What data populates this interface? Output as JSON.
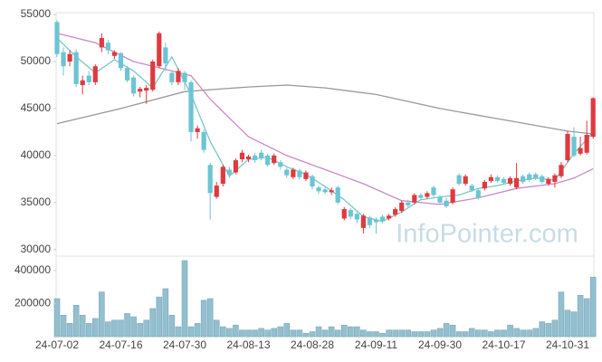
{
  "chart_data": [
    {
      "type": "candlestick",
      "watermark": "InfoPointer.com",
      "categories": [
        "24-07-02",
        null,
        null,
        null,
        null,
        null,
        null,
        null,
        null,
        null,
        "24-07-16",
        null,
        null,
        null,
        null,
        null,
        null,
        null,
        null,
        null,
        "24-07-30",
        null,
        null,
        null,
        null,
        null,
        null,
        null,
        null,
        null,
        "24-08-13",
        null,
        null,
        null,
        null,
        null,
        null,
        null,
        null,
        null,
        "24-08-28",
        null,
        null,
        null,
        null,
        null,
        null,
        null,
        null,
        null,
        "24-09-11",
        null,
        null,
        null,
        null,
        null,
        null,
        null,
        null,
        null,
        "24-09-30",
        null,
        null,
        null,
        null,
        null,
        null,
        null,
        null,
        null,
        "24-10-17",
        null,
        null,
        null,
        null,
        null,
        null,
        null,
        null,
        null,
        "24-10-31",
        null,
        null,
        null,
        null
      ],
      "open": [
        54200,
        51000,
        50000,
        51000,
        47500,
        48500,
        47800,
        51500,
        52000,
        50600,
        50900,
        49300,
        48300,
        46800,
        46900,
        47000,
        49500,
        51500,
        48800,
        47800,
        48800,
        47800,
        42500,
        42500,
        39000,
        35600,
        37000,
        38500,
        38200,
        39600,
        39600,
        40000,
        40300,
        40000,
        39200,
        39300,
        38500,
        37700,
        38400,
        37500,
        37800,
        36600,
        36400,
        36100,
        36600,
        33300,
        34200,
        33800,
        32300,
        33400,
        33200,
        33500,
        33300,
        33700,
        34100,
        35000,
        35000,
        35800,
        35600,
        36600,
        35600,
        35200,
        35000,
        37900,
        37000,
        36800,
        36300,
        36500,
        37300,
        37700,
        37500,
        37000,
        36600,
        37800,
        38000,
        38000,
        37800,
        37000,
        37200,
        37800,
        39500,
        42000,
        40200,
        40300,
        42000
      ],
      "high": [
        54400,
        51500,
        51200,
        51300,
        48500,
        49000,
        49700,
        53000,
        52300,
        51200,
        51000,
        49500,
        48500,
        47300,
        47500,
        50200,
        53200,
        52000,
        49000,
        49300,
        49000,
        48000,
        43200,
        42800,
        39200,
        37200,
        39000,
        38800,
        39700,
        40600,
        40100,
        40300,
        40600,
        40200,
        40200,
        39500,
        38700,
        38700,
        38600,
        38400,
        38000,
        36800,
        36600,
        36600,
        36800,
        34500,
        34400,
        34000,
        33800,
        33600,
        33400,
        33700,
        33800,
        34500,
        35200,
        35300,
        36000,
        36000,
        36200,
        36800,
        35800,
        35500,
        36600,
        38100,
        38000,
        37000,
        36500,
        37400,
        38000,
        37900,
        37700,
        37800,
        39200,
        38000,
        38200,
        38200,
        38000,
        37700,
        38100,
        39300,
        42600,
        43000,
        42000,
        43700,
        46200
      ],
      "low": [
        50500,
        48500,
        49500,
        47300,
        46500,
        47500,
        47500,
        51000,
        50800,
        50300,
        49000,
        47800,
        46300,
        46200,
        45500,
        46800,
        49300,
        49000,
        47500,
        47500,
        47000,
        41500,
        41800,
        40300,
        33200,
        35400,
        36700,
        37600,
        38000,
        39300,
        39300,
        39200,
        39500,
        38800,
        39000,
        38500,
        37600,
        37500,
        37400,
        37300,
        36400,
        35900,
        35900,
        35800,
        34800,
        33100,
        33200,
        32800,
        31700,
        32300,
        31700,
        32800,
        33100,
        33500,
        33900,
        34500,
        34800,
        35300,
        35400,
        35600,
        34800,
        34400,
        34800,
        36800,
        36800,
        36100,
        35300,
        36300,
        37100,
        37100,
        36900,
        36800,
        36400,
        37000,
        37200,
        37400,
        37000,
        36800,
        36600,
        37600,
        39300,
        39800,
        40000,
        40100,
        41800
      ],
      "close": [
        50800,
        49500,
        50800,
        47600,
        48000,
        47800,
        49500,
        52500,
        51200,
        51000,
        49300,
        48000,
        46600,
        47100,
        47200,
        50000,
        53000,
        49800,
        47800,
        49000,
        47800,
        42500,
        42900,
        40600,
        36000,
        36800,
        38800,
        38000,
        39500,
        40300,
        39900,
        39500,
        39700,
        39000,
        40000,
        38800,
        37900,
        38500,
        37700,
        38200,
        36700,
        36200,
        36100,
        36300,
        35000,
        34300,
        33500,
        33200,
        33600,
        32600,
        32900,
        33000,
        33600,
        34300,
        35000,
        34700,
        35800,
        35500,
        36000,
        35800,
        35000,
        34600,
        36400,
        37000,
        37800,
        36300,
        35500,
        37200,
        37700,
        37300,
        37100,
        37600,
        37600,
        37200,
        37400,
        37600,
        37200,
        37500,
        37900,
        39000,
        42300,
        40000,
        40800,
        42200,
        46100
      ],
      "up_color": "#e0393e",
      "down_color": "#6cc4d4",
      "lines": [
        {
          "color": "#999999",
          "x": [
            0,
            10,
            20,
            30,
            36,
            42,
            50,
            60,
            70,
            80,
            84
          ],
          "values": [
            43400,
            45000,
            46800,
            47300,
            47500,
            47200,
            46500,
            45000,
            43800,
            42600,
            42300
          ]
        },
        {
          "color": "#c98ac7",
          "x": [
            0,
            6,
            12,
            18,
            21,
            24,
            30,
            36,
            42,
            48,
            54,
            60,
            66,
            72,
            78,
            81,
            84
          ],
          "values": [
            53000,
            52000,
            50000,
            49000,
            48500,
            46000,
            42000,
            40000,
            38500,
            37000,
            35200,
            34800,
            35500,
            36500,
            37000,
            37600,
            38600
          ]
        },
        {
          "color": "#7cc7c5",
          "x": [
            0,
            3,
            6,
            9,
            12,
            15,
            18,
            21,
            24,
            27,
            30,
            33,
            36,
            39,
            42,
            45,
            48,
            51,
            54,
            57,
            60,
            63,
            66,
            69,
            72,
            75,
            78,
            81,
            84
          ],
          "values": [
            52500,
            50500,
            48800,
            50200,
            49000,
            47200,
            50500,
            46500,
            41500,
            37800,
            39600,
            39800,
            38800,
            38000,
            36700,
            35300,
            33500,
            33000,
            34000,
            35300,
            35600,
            35800,
            36500,
            36800,
            37300,
            37600,
            37400,
            40200,
            42500
          ]
        }
      ],
      "ylim": [
        29300,
        55200
      ],
      "yticks": [
        30000,
        35000,
        40000,
        45000,
        50000,
        55000
      ]
    },
    {
      "type": "bar",
      "values": [
        230000,
        130000,
        80000,
        190000,
        130000,
        80000,
        110000,
        270000,
        90000,
        100000,
        100000,
        140000,
        120000,
        80000,
        100000,
        170000,
        240000,
        290000,
        130000,
        60000,
        460000,
        60000,
        80000,
        220000,
        230000,
        100000,
        60000,
        50000,
        70000,
        40000,
        40000,
        40000,
        50000,
        40000,
        50000,
        60000,
        80000,
        40000,
        40000,
        20000,
        30000,
        60000,
        40000,
        60000,
        40000,
        70000,
        60000,
        60000,
        40000,
        30000,
        30000,
        20000,
        40000,
        40000,
        40000,
        40000,
        30000,
        30000,
        30000,
        40000,
        50000,
        80000,
        70000,
        30000,
        30000,
        50000,
        40000,
        40000,
        30000,
        40000,
        40000,
        70000,
        50000,
        40000,
        40000,
        50000,
        90000,
        80000,
        100000,
        270000,
        160000,
        150000,
        250000,
        230000,
        360000
      ],
      "color": "#93bfcf",
      "ylim": [
        0,
        487000
      ],
      "yticks": [
        200000,
        400000
      ]
    }
  ]
}
